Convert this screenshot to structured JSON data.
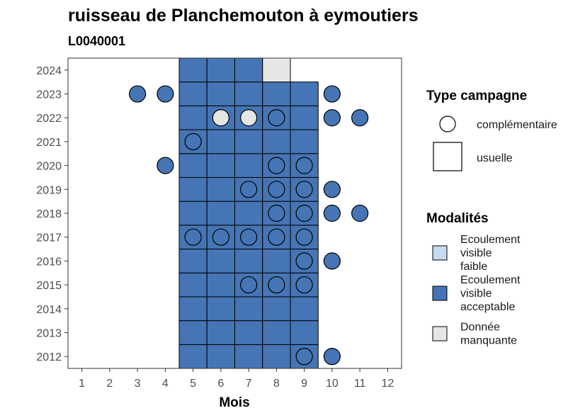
{
  "chart_data": {
    "type": "heatmap",
    "title": "ruisseau de Planchemouton à eymoutiers",
    "subtitle": "L0040001",
    "xlabel": "Mois",
    "ylabel": "",
    "x_ticks": [
      1,
      2,
      3,
      4,
      5,
      6,
      7,
      8,
      9,
      10,
      11,
      12
    ],
    "y_ticks": [
      2012,
      2013,
      2014,
      2015,
      2016,
      2017,
      2018,
      2019,
      2020,
      2021,
      2022,
      2023,
      2024
    ],
    "xlim": [
      0.5,
      12.5
    ],
    "ylim": [
      2011.5,
      2024.5
    ],
    "grid": false,
    "legend_position": "right",
    "legends": {
      "type_campagne": {
        "title": "Type campagne",
        "items": [
          {
            "label": "complémentaire",
            "shape": "circle"
          },
          {
            "label": "usuelle",
            "shape": "square"
          }
        ]
      },
      "modalites": {
        "title": "Modalités",
        "items": [
          {
            "key": "faible",
            "lines": [
              "Ecoulement",
              "visible",
              "faible"
            ],
            "color": "#c6dbef"
          },
          {
            "key": "acceptable",
            "lines": [
              "Ecoulement",
              "visible",
              "acceptable"
            ],
            "color": "#4575b4"
          },
          {
            "key": "manquante",
            "lines": [
              "Donnée",
              "manquante"
            ],
            "color": "#e6e6e6"
          }
        ]
      }
    },
    "usuelle": [
      {
        "year": 2012,
        "months": [
          5,
          6,
          7,
          8,
          9
        ],
        "modalite": "acceptable"
      },
      {
        "year": 2013,
        "months": [
          5,
          6,
          7,
          8,
          9
        ],
        "modalite": "acceptable"
      },
      {
        "year": 2014,
        "months": [
          5,
          6,
          7,
          8,
          9
        ],
        "modalite": "acceptable"
      },
      {
        "year": 2015,
        "months": [
          5,
          6,
          7,
          8,
          9
        ],
        "modalite": "acceptable"
      },
      {
        "year": 2016,
        "months": [
          5,
          6,
          7,
          8,
          9
        ],
        "modalite": "acceptable"
      },
      {
        "year": 2017,
        "months": [
          5,
          6,
          7,
          8,
          9
        ],
        "modalite": "acceptable"
      },
      {
        "year": 2018,
        "months": [
          5,
          6,
          7,
          8,
          9
        ],
        "modalite": "acceptable"
      },
      {
        "year": 2019,
        "months": [
          5,
          6,
          7,
          8,
          9
        ],
        "modalite": "acceptable"
      },
      {
        "year": 2020,
        "months": [
          5,
          6,
          7,
          8,
          9
        ],
        "modalite": "acceptable"
      },
      {
        "year": 2021,
        "months": [
          5,
          6,
          7,
          8,
          9
        ],
        "modalite": "acceptable"
      },
      {
        "year": 2022,
        "months": [
          5,
          6,
          7,
          8,
          9
        ],
        "modalite": "acceptable"
      },
      {
        "year": 2023,
        "months": [
          5,
          6,
          7,
          8,
          9
        ],
        "modalite": "acceptable"
      },
      {
        "year": 2024,
        "months": [
          5,
          6,
          7
        ],
        "modalite": "acceptable"
      },
      {
        "year": 2024,
        "months": [
          8
        ],
        "modalite": "manquante"
      }
    ],
    "complementaire": [
      {
        "year": 2012,
        "months": [
          9,
          10
        ],
        "modalite": "acceptable"
      },
      {
        "year": 2015,
        "months": [
          7,
          8,
          9
        ],
        "modalite": "acceptable"
      },
      {
        "year": 2016,
        "months": [
          9,
          10
        ],
        "modalite": "acceptable"
      },
      {
        "year": 2017,
        "months": [
          5,
          6,
          7,
          8,
          9
        ],
        "modalite": "acceptable"
      },
      {
        "year": 2018,
        "months": [
          8,
          9,
          10,
          11
        ],
        "modalite": "acceptable"
      },
      {
        "year": 2019,
        "months": [
          7,
          8,
          9,
          10
        ],
        "modalite": "acceptable"
      },
      {
        "year": 2020,
        "months": [
          4,
          8,
          9
        ],
        "modalite": "acceptable"
      },
      {
        "year": 2021,
        "months": [
          5
        ],
        "modalite": "acceptable"
      },
      {
        "year": 2022,
        "months": [
          8,
          10,
          11
        ],
        "modalite": "acceptable"
      },
      {
        "year": 2022,
        "months": [
          6,
          7
        ],
        "modalite": "manquante"
      },
      {
        "year": 2023,
        "months": [
          3,
          4,
          10
        ],
        "modalite": "acceptable"
      }
    ]
  }
}
